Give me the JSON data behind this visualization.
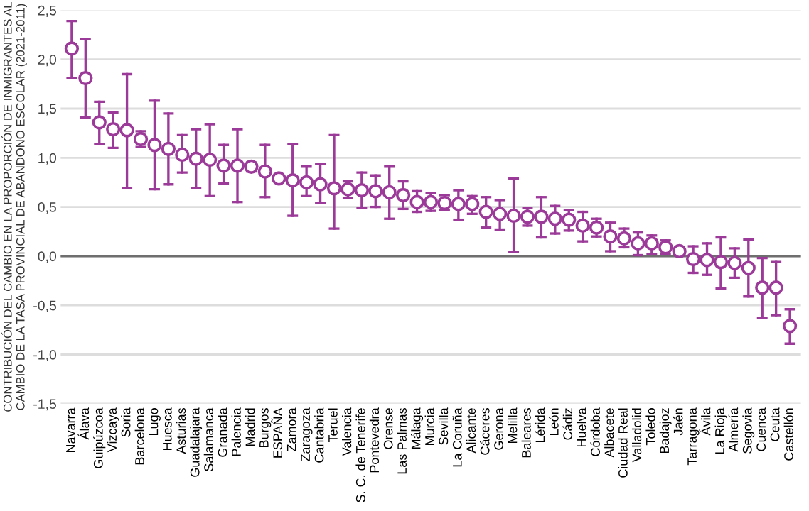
{
  "chart_data": {
    "type": "scatter",
    "ylabel": "CONTRIBUCIÓN DEL CAMBIO EN LA PROPORCIÓN DE INMIGRANTES AL\nCAMBIO DE LA TASA PROVINCIAL DE ABANDONO ESCOLAR (2021-2011)",
    "categories": [
      "Navarra",
      "Álava",
      "Guipúzcoa",
      "Vizcaya",
      "Soria",
      "Barcelona",
      "Lugo",
      "Huesca",
      "Asturias",
      "Guadalajara",
      "Salamanca",
      "Granada",
      "Palencia",
      "Madrid",
      "Burgos",
      "ESPAÑA",
      "Zamora",
      "Zaragoza",
      "Cantabria",
      "Teruel",
      "Valencia",
      "S. C. de Tenerife",
      "Pontevedra",
      "Orense",
      "Las Palmas",
      "Málaga",
      "Murcia",
      "Sevilla",
      "La Coruña",
      "Alicante",
      "Cáceres",
      "Gerona",
      "Melilla",
      "Baleares",
      "Lérida",
      "León",
      "Cádiz",
      "Huelva",
      "Córdoba",
      "Albacete",
      "Ciudad Real",
      "Valladolid",
      "Toledo",
      "Badajoz",
      "Jaén",
      "Tarragona",
      "Ávila",
      "La Rioja",
      "Almería",
      "Segovia",
      "Cuenca",
      "Ceuta",
      "Castellón"
    ],
    "series": [
      {
        "color": "#9b3a98",
        "values": [
          2.11,
          1.81,
          1.36,
          1.29,
          1.28,
          1.19,
          1.13,
          1.09,
          1.03,
          0.99,
          0.98,
          0.92,
          0.92,
          0.91,
          0.86,
          0.79,
          0.77,
          0.75,
          0.73,
          0.69,
          0.68,
          0.67,
          0.66,
          0.65,
          0.62,
          0.55,
          0.55,
          0.54,
          0.53,
          0.53,
          0.45,
          0.43,
          0.41,
          0.4,
          0.4,
          0.38,
          0.37,
          0.31,
          0.29,
          0.2,
          0.18,
          0.13,
          0.13,
          0.09,
          0.05,
          -0.03,
          -0.04,
          -0.06,
          -0.07,
          -0.12,
          -0.32,
          -0.32,
          -0.71
        ],
        "errors": [
          [
            1.81,
            2.39
          ],
          [
            1.41,
            2.21
          ],
          [
            1.14,
            1.57
          ],
          [
            1.1,
            1.46
          ],
          [
            0.69,
            1.85
          ],
          [
            1.11,
            1.27
          ],
          [
            0.68,
            1.58
          ],
          [
            0.73,
            1.45
          ],
          [
            0.85,
            1.23
          ],
          [
            0.69,
            1.29
          ],
          [
            0.61,
            1.34
          ],
          [
            0.74,
            1.13
          ],
          [
            0.55,
            1.29
          ],
          [
            0.86,
            0.95
          ],
          [
            0.6,
            1.13
          ],
          [
            0.76,
            0.83
          ],
          [
            0.41,
            1.14
          ],
          [
            0.61,
            0.91
          ],
          [
            0.54,
            0.94
          ],
          [
            0.28,
            1.23
          ],
          [
            0.59,
            0.76
          ],
          [
            0.49,
            0.85
          ],
          [
            0.5,
            0.82
          ],
          [
            0.38,
            0.91
          ],
          [
            0.48,
            0.76
          ],
          [
            0.45,
            0.66
          ],
          [
            0.46,
            0.64
          ],
          [
            0.47,
            0.62
          ],
          [
            0.37,
            0.67
          ],
          [
            0.43,
            0.61
          ],
          [
            0.29,
            0.6
          ],
          [
            0.27,
            0.57
          ],
          [
            0.04,
            0.79
          ],
          [
            0.31,
            0.49
          ],
          [
            0.19,
            0.6
          ],
          [
            0.23,
            0.51
          ],
          [
            0.26,
            0.47
          ],
          [
            0.15,
            0.45
          ],
          [
            0.2,
            0.38
          ],
          [
            0.05,
            0.34
          ],
          [
            0.09,
            0.28
          ],
          [
            0.01,
            0.24
          ],
          [
            0.02,
            0.21
          ],
          [
            0.02,
            0.16
          ],
          [
            0.01,
            0.08
          ],
          [
            -0.17,
            0.1
          ],
          [
            -0.19,
            0.13
          ],
          [
            -0.33,
            0.19
          ],
          [
            -0.22,
            0.08
          ],
          [
            -0.41,
            0.17
          ],
          [
            -0.63,
            -0.02
          ],
          [
            -0.6,
            -0.06
          ],
          [
            -0.89,
            -0.54
          ]
        ]
      }
    ],
    "ylim": [
      -1.5,
      2.5
    ],
    "yticks": [
      {
        "value": -1.5,
        "label": "-1,5"
      },
      {
        "value": -1.0,
        "label": "-1,0"
      },
      {
        "value": -0.5,
        "label": "-0,5"
      },
      {
        "value": 0,
        "label": "0,0"
      },
      {
        "value": 0.5,
        "label": "0,5"
      },
      {
        "value": 1.0,
        "label": "1,0"
      },
      {
        "value": 1.5,
        "label": "1,5"
      },
      {
        "value": 2.0,
        "label": "2,0"
      },
      {
        "value": 2.5,
        "label": "2,5"
      }
    ],
    "ref_lines": [
      {
        "axis": "y",
        "value": 0,
        "color": "#6e6e6e"
      }
    ],
    "grid": "y",
    "marker": "circle",
    "legend": false
  }
}
